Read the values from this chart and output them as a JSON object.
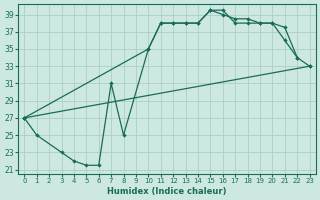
{
  "xlabel": "Humidex (Indice chaleur)",
  "ylabel": "",
  "bg_color": "#cce8e0",
  "line_color": "#1a6b5a",
  "grid_color": "#aacfc8",
  "xlim": [
    -0.5,
    23.5
  ],
  "ylim": [
    20.5,
    40.2
  ],
  "xticks": [
    0,
    1,
    2,
    3,
    4,
    5,
    6,
    7,
    8,
    9,
    10,
    11,
    12,
    13,
    14,
    15,
    16,
    17,
    18,
    19,
    20,
    21,
    22,
    23
  ],
  "yticks": [
    21,
    23,
    25,
    27,
    29,
    31,
    33,
    35,
    37,
    39
  ],
  "line1_x": [
    0,
    1,
    3,
    4,
    5,
    6,
    7,
    8,
    10,
    11,
    12,
    13,
    14,
    15,
    16,
    17,
    18,
    19,
    20,
    21,
    22
  ],
  "line1_y": [
    27,
    25,
    23,
    22,
    21.5,
    21.5,
    31,
    25,
    35,
    38,
    38,
    38,
    38,
    39.5,
    39.5,
    38,
    38,
    38,
    38,
    36,
    34
  ],
  "line2_x": [
    0,
    10,
    11,
    12,
    13,
    14,
    15,
    16,
    17,
    18,
    19,
    20,
    21,
    22,
    23
  ],
  "line2_y": [
    27,
    35,
    38,
    38,
    38,
    38,
    39.5,
    39,
    38.5,
    38.5,
    38,
    38,
    37.5,
    34,
    33
  ],
  "line3_x": [
    0,
    23
  ],
  "line3_y": [
    27,
    33
  ]
}
